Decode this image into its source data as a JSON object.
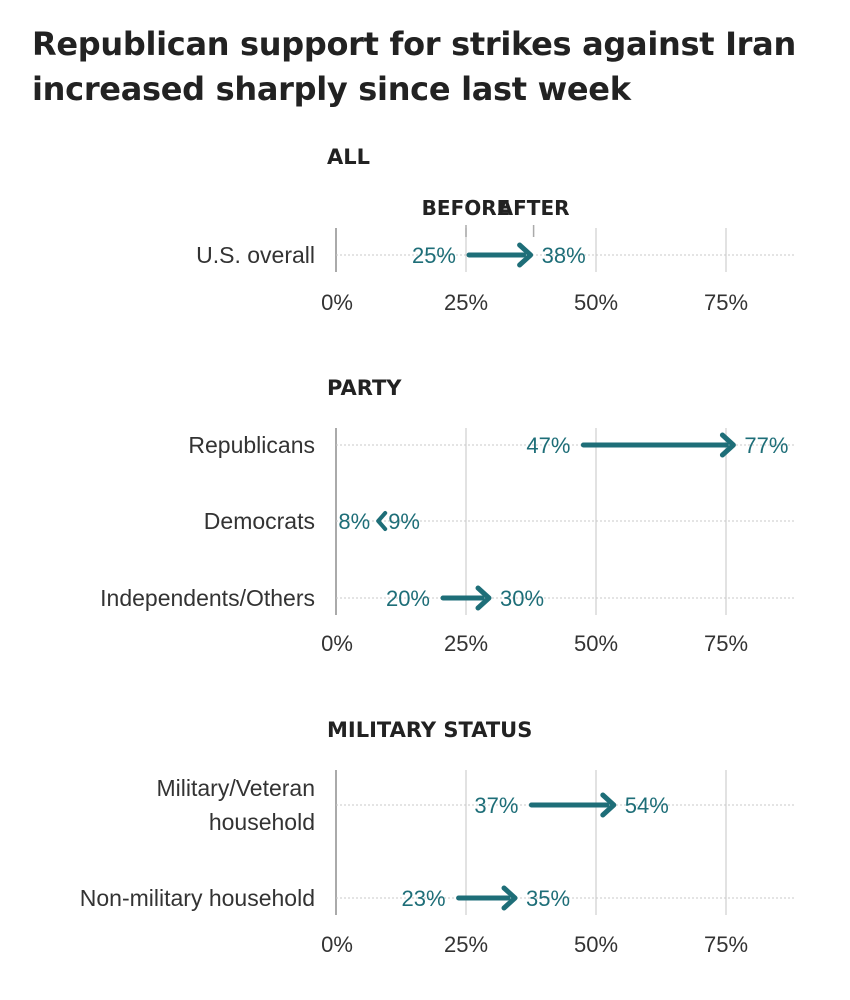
{
  "title": "Republican support for strikes against Iran increased sharply since last week",
  "colors": {
    "arrow": "#1e6e78",
    "grid": "#d9d9d9",
    "axis": "#aaaaaa",
    "text": "#333333"
  },
  "chart_data": {
    "type": "arrow-dot",
    "unit": "%",
    "xlim": [
      0,
      90
    ],
    "ticks": [
      0,
      25,
      50,
      75
    ],
    "tick_labels": [
      "0%",
      "25%",
      "50%",
      "75%"
    ],
    "legend": {
      "before": "BEFORE",
      "after": "AFTER"
    },
    "sections": [
      {
        "title": "ALL",
        "show_legend": true,
        "rows": [
          {
            "label": [
              "U.S. overall"
            ],
            "before": 25,
            "after": 38
          }
        ]
      },
      {
        "title": "PARTY",
        "show_legend": false,
        "rows": [
          {
            "label": [
              "Republicans"
            ],
            "before": 47,
            "after": 77
          },
          {
            "label": [
              "Democrats"
            ],
            "before": 9,
            "after": 8
          },
          {
            "label": [
              "Independents/Others"
            ],
            "before": 20,
            "after": 30
          }
        ]
      },
      {
        "title": "MILITARY STATUS",
        "show_legend": false,
        "rows": [
          {
            "label": [
              "Military/Veteran",
              "household"
            ],
            "before": 37,
            "after": 54
          },
          {
            "label": [
              "Non-military household"
            ],
            "before": 23,
            "after": 35
          }
        ]
      }
    ]
  }
}
